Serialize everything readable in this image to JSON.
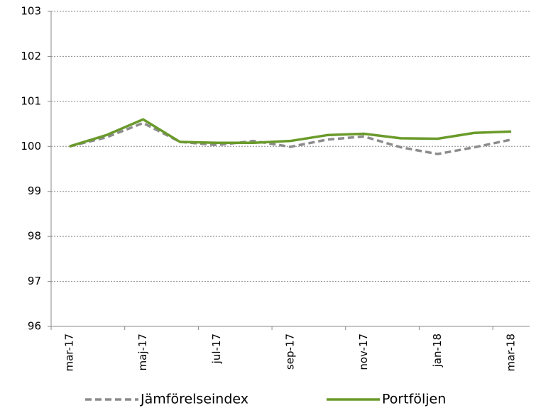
{
  "chart_data": {
    "type": "line",
    "categories": [
      "mar-17",
      null,
      "maj-17",
      null,
      "jul-17",
      null,
      "sep-17",
      null,
      "nov-17",
      null,
      "jan-18",
      null,
      "mar-18"
    ],
    "series": [
      {
        "name": "Jämförelseindex",
        "color": "#8c8c8c",
        "dashed": true,
        "values": [
          100,
          100.2,
          100.52,
          100.1,
          100.03,
          100.12,
          99.99,
          100.15,
          100.22,
          99.98,
          99.83,
          99.98,
          100.15
        ]
      },
      {
        "name": "Portföljen",
        "color": "#6a9a2a",
        "dashed": false,
        "values": [
          100,
          100.25,
          100.6,
          100.1,
          100.08,
          100.08,
          100.12,
          100.25,
          100.28,
          100.18,
          100.17,
          100.3,
          100.33
        ]
      }
    ],
    "ylim": [
      96,
      103
    ],
    "yticks": [
      96,
      97,
      98,
      99,
      100,
      101,
      102,
      103
    ],
    "grid": true,
    "legend": "bottom"
  }
}
